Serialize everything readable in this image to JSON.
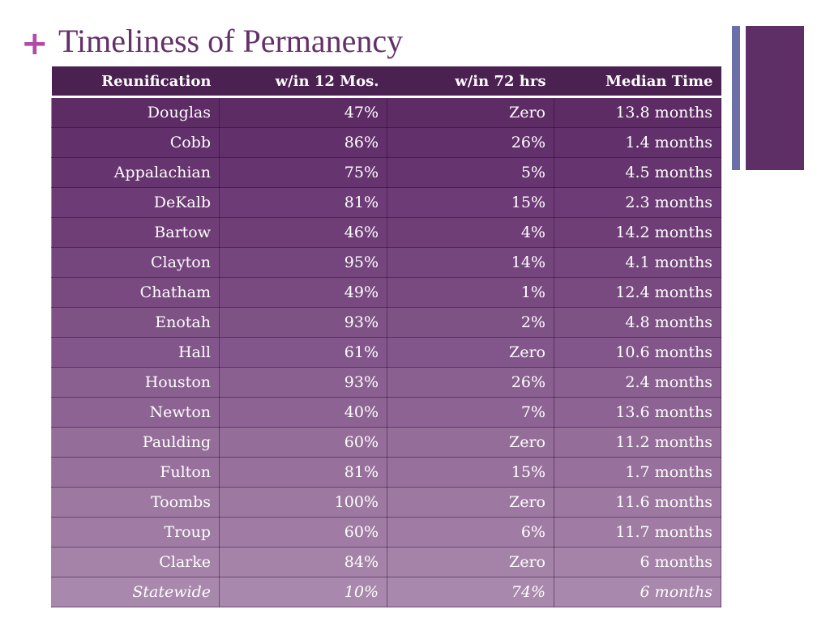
{
  "slide": {
    "plus_glyph": "+",
    "title": "Timeliness of Permanency"
  },
  "table": {
    "headers": [
      "Reunification",
      "w/in 12 Mos.",
      "w/in 72 hrs",
      "Median Time"
    ],
    "rows": [
      [
        "Douglas",
        "47%",
        "Zero",
        "13.8 months"
      ],
      [
        "Cobb",
        "86%",
        "26%",
        "1.4 months"
      ],
      [
        "Appalachian",
        "75%",
        "5%",
        "4.5 months"
      ],
      [
        "DeKalb",
        "81%",
        "15%",
        "2.3 months"
      ],
      [
        "Bartow",
        "46%",
        "4%",
        "14.2 months"
      ],
      [
        "Clayton",
        "95%",
        "14%",
        "4.1 months"
      ],
      [
        "Chatham",
        "49%",
        "1%",
        "12.4 months"
      ],
      [
        "Enotah",
        "93%",
        "2%",
        "4.8 months"
      ],
      [
        "Hall",
        "61%",
        "Zero",
        "10.6 months"
      ],
      [
        "Houston",
        "93%",
        "26%",
        "2.4 months"
      ],
      [
        "Newton",
        "40%",
        "7%",
        "13.6 months"
      ],
      [
        "Paulding",
        "60%",
        "Zero",
        "11.2 months"
      ],
      [
        "Fulton",
        "81%",
        "15%",
        "1.7 months"
      ],
      [
        "Toombs",
        "100%",
        "Zero",
        "11.6 months"
      ],
      [
        "Troup",
        "60%",
        "6%",
        "11.7 months"
      ],
      [
        "Clarke",
        "84%",
        "Zero",
        "6 months"
      ]
    ],
    "summary_row": [
      "Statewide",
      "10%",
      "74%",
      "6 months"
    ]
  },
  "colors": {
    "header_bg": "#4a2150",
    "row_gradient_top": "#5a2a62",
    "row_gradient_bottom": "#a98bb0",
    "title": "#64306a",
    "plus": "#b04ba8",
    "accent_thin": "#6a6fa8",
    "accent_wide": "#5e2f66"
  }
}
